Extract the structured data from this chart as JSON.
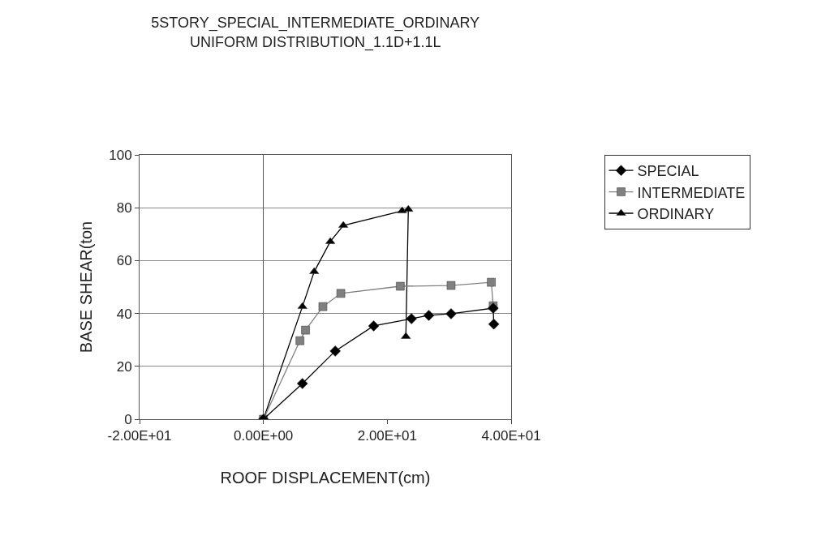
{
  "chart_data": {
    "type": "line",
    "title": "5STORY_SPECIAL_INTERMEDIATE_ORDINARY",
    "subtitle": "UNIFORM DISTRIBUTION_1.1D+1.1L",
    "xlabel": "ROOF DISPLACEMENT(cm)",
    "ylabel": "BASE SHEAR(ton",
    "xlim": [
      -20,
      40
    ],
    "xticks": [
      {
        "value": -20,
        "label": "-2.00E+01"
      },
      {
        "value": 0,
        "label": "0.00E+00"
      },
      {
        "value": 20,
        "label": "2.00E+01"
      },
      {
        "value": 40,
        "label": "4.00E+01"
      }
    ],
    "ylim": [
      0,
      100
    ],
    "yticks": [
      0,
      20,
      40,
      60,
      80,
      100
    ],
    "grid": "y",
    "legend": "right",
    "line_style": "solid",
    "series": [
      {
        "name": "SPECIAL",
        "color": "#000000",
        "marker": "diamond",
        "x": [
          0,
          6.3,
          11.6,
          17.8,
          23.9,
          26.7,
          30.3,
          37.1,
          37.2
        ],
        "values": [
          0,
          13.5,
          25.8,
          35.3,
          38,
          39.3,
          39.9,
          42,
          36
        ]
      },
      {
        "name": "INTERMEDIATE",
        "color": "#808080",
        "marker": "square",
        "x": [
          0,
          5.9,
          6.8,
          9.6,
          12.5,
          22.1,
          30.3,
          36.8,
          37.1
        ],
        "values": [
          0,
          29.7,
          33.7,
          42.6,
          47.6,
          50.3,
          50.6,
          51.8,
          42.9
        ]
      },
      {
        "name": "ORDINARY",
        "color": "#000000",
        "marker": "triangle",
        "x": [
          0,
          6.3,
          8.2,
          10.8,
          12.9,
          22.4,
          23.4,
          23.0
        ],
        "values": [
          0,
          42.6,
          55.8,
          67.2,
          73.3,
          78.8,
          79.4,
          31.3
        ]
      }
    ]
  }
}
